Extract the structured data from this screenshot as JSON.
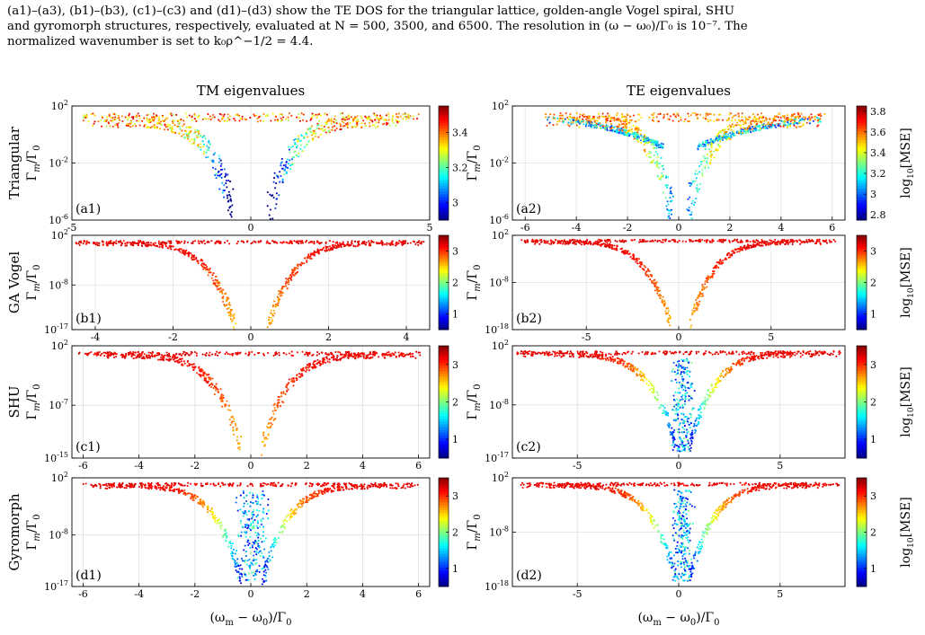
{
  "caption": {
    "line1": "(a1)–(a3), (b1)–(b3), (c1)–(c3) and (d1)–(d3) show the TE DOS for the triangular lattice, golden-angle Vogel spiral, SHU",
    "line2": "and gyromorph structures, respectively, evaluated at N = 500, 3500, and 6500. The resolution in (ω − ω₀)/Γ₀ is 10⁻⁷. The",
    "line3": "normalized wavenumber is set to k₀ρ^−1/2 = 4.4."
  },
  "column_titles": [
    "TM eigenvalues",
    "TE eigenvalues"
  ],
  "row_labels": [
    "Triangular",
    "GA Vogel",
    "SHU",
    "Gyromorph"
  ],
  "y_axis_label": "Γm/Γ0",
  "x_axis_label": "(ωm − ω0)/Γ0",
  "colorbar_label": "log10[MSE]",
  "colors": {
    "frame": "#000000",
    "grid": "#e0e0e0"
  },
  "chart_data": [
    {
      "type": "scatter",
      "panel": "(a1)",
      "row": "Triangular",
      "column": "TM eigenvalues",
      "x_ticks": [
        -5,
        0,
        5
      ],
      "xlim": [
        -5,
        5
      ],
      "y_ticks": [
        "10^2",
        "10^-2",
        "10^-6"
      ],
      "y_scale": "log",
      "ylim_exponent": [
        -6,
        2
      ],
      "colorbar_ticks": [
        3,
        3.2,
        3.4
      ],
      "color_range": [
        2.9,
        3.55
      ],
      "colorbar_label": "",
      "shape": {
        "left_end": -4.7,
        "right_end": 4.8,
        "left_gap": -0.5,
        "right_gap": 0.5,
        "bottom_exponent": -5,
        "top_exponent": 1.2,
        "dual_branch": false,
        "core_fill": false,
        "high_color": 3.5
      }
    },
    {
      "type": "scatter",
      "panel": "(a2)",
      "row": "Triangular",
      "column": "TE eigenvalues",
      "x_ticks": [
        -6,
        -4,
        -2,
        0,
        2,
        4,
        6
      ],
      "xlim": [
        -6.5,
        6.5
      ],
      "y_ticks": [
        "10^2",
        "10^-2",
        "10^-6"
      ],
      "y_scale": "log",
      "ylim_exponent": [
        -6,
        2
      ],
      "colorbar_ticks": [
        2.8,
        3,
        3.2,
        3.4,
        3.6,
        3.8
      ],
      "color_range": [
        2.75,
        3.85
      ],
      "colorbar_label": "log10[MSE]",
      "shape": {
        "left_end": -5.2,
        "right_end": 5.8,
        "left_gap": -0.2,
        "right_gap": 0.3,
        "bottom_exponent": -5.5,
        "top_exponent": 1.2,
        "dual_branch": true,
        "core_fill": false,
        "high_color": 3.7
      }
    },
    {
      "type": "scatter",
      "panel": "(b1)",
      "row": "GA Vogel",
      "column": "TM eigenvalues",
      "x_ticks": [
        -4,
        -2,
        0,
        2,
        4
      ],
      "xlim": [
        -4.6,
        4.6
      ],
      "y_ticks": [
        "10^2",
        "10^-8",
        "10^-17"
      ],
      "y_scale": "log",
      "ylim_exponent": [
        -17,
        2
      ],
      "colorbar_ticks": [
        1,
        2,
        3
      ],
      "color_range": [
        0.5,
        3.5
      ],
      "colorbar_label": "",
      "shape": {
        "left_end": -4.5,
        "right_end": 4.5,
        "left_gap": -0.4,
        "right_gap": 0.45,
        "bottom_exponent": -16,
        "top_exponent": 0.6,
        "dual_branch": false,
        "core_fill": false,
        "high_color": 3.3
      }
    },
    {
      "type": "scatter",
      "panel": "(b2)",
      "row": "GA Vogel",
      "column": "TE eigenvalues",
      "x_ticks": [
        -5,
        0,
        5
      ],
      "xlim": [
        -9,
        9
      ],
      "y_ticks": [
        "10^2",
        "10^-8",
        "10^-18"
      ],
      "y_scale": "log",
      "ylim_exponent": [
        -18,
        2
      ],
      "colorbar_ticks": [
        1,
        2,
        3
      ],
      "color_range": [
        0.5,
        3.5
      ],
      "colorbar_label": "log10[MSE]",
      "shape": {
        "left_end": -8.5,
        "right_end": 8.5,
        "left_gap": -0.4,
        "right_gap": 0.6,
        "bottom_exponent": -17,
        "top_exponent": 0.8,
        "dual_branch": false,
        "core_fill": false,
        "high_color": 3.3
      }
    },
    {
      "type": "scatter",
      "panel": "(c1)",
      "row": "SHU",
      "column": "TM eigenvalues",
      "x_ticks": [
        -6,
        -4,
        -2,
        0,
        2,
        4,
        6
      ],
      "xlim": [
        -6.4,
        6.4
      ],
      "y_ticks": [
        "10^2",
        "10^-7",
        "10^-15"
      ],
      "y_scale": "log",
      "ylim_exponent": [
        -15,
        2
      ],
      "colorbar_ticks": [
        1,
        2,
        3
      ],
      "color_range": [
        0.5,
        3.5
      ],
      "colorbar_label": "",
      "shape": {
        "left_end": -6.2,
        "right_end": 6.2,
        "left_gap": -0.35,
        "right_gap": 0.4,
        "bottom_exponent": -13,
        "top_exponent": 0.8,
        "dual_branch": false,
        "core_fill": false,
        "high_color": 3.3
      }
    },
    {
      "type": "scatter",
      "panel": "(c2)",
      "row": "SHU",
      "column": "TE eigenvalues",
      "x_ticks": [
        -5,
        0,
        5
      ],
      "xlim": [
        -8.2,
        8.2
      ],
      "y_ticks": [
        "10^2",
        "10^-8",
        "10^-17"
      ],
      "y_scale": "log",
      "ylim_exponent": [
        -17,
        2
      ],
      "colorbar_ticks": [
        1,
        2,
        3
      ],
      "color_range": [
        0.5,
        3.5
      ],
      "colorbar_label": "log10[MSE]",
      "shape": {
        "left_end": -8,
        "right_end": 8,
        "left_gap": -0.1,
        "right_gap": 0.5,
        "bottom_exponent": -15,
        "top_exponent": 0.8,
        "dual_branch": false,
        "core_fill": true,
        "high_color": 3.3
      }
    },
    {
      "type": "scatter",
      "panel": "(d1)",
      "row": "Gyromorph",
      "column": "TM eigenvalues",
      "x_ticks": [
        -6,
        -4,
        -2,
        0,
        2,
        4,
        6
      ],
      "xlim": [
        -6.4,
        6.4
      ],
      "y_ticks": [
        "10^2",
        "10^-8",
        "10^-17"
      ],
      "y_scale": "log",
      "ylim_exponent": [
        -17,
        2
      ],
      "colorbar_ticks": [
        1,
        2,
        3
      ],
      "color_range": [
        0.5,
        3.5
      ],
      "colorbar_label": "",
      "shape": {
        "left_end": -6,
        "right_end": 6,
        "left_gap": -0.3,
        "right_gap": 0.4,
        "bottom_exponent": -16,
        "top_exponent": 0.8,
        "dual_branch": false,
        "core_fill": true,
        "high_color": 3.3
      }
    },
    {
      "type": "scatter",
      "panel": "(d2)",
      "row": "Gyromorph",
      "column": "TE eigenvalues",
      "x_ticks": [
        -5,
        0,
        5
      ],
      "xlim": [
        -8.2,
        8.2
      ],
      "y_ticks": [
        "10^2",
        "10^-8",
        "10^-18"
      ],
      "y_scale": "log",
      "ylim_exponent": [
        -18,
        2
      ],
      "colorbar_ticks": [
        1,
        2,
        3
      ],
      "color_range": [
        0.5,
        3.5
      ],
      "colorbar_label": "log10[MSE]",
      "shape": {
        "left_end": -7.8,
        "right_end": 8,
        "left_gap": -0.1,
        "right_gap": 0.5,
        "bottom_exponent": -16.5,
        "top_exponent": 0.8,
        "dual_branch": false,
        "core_fill": true,
        "high_color": 3.3
      }
    }
  ]
}
